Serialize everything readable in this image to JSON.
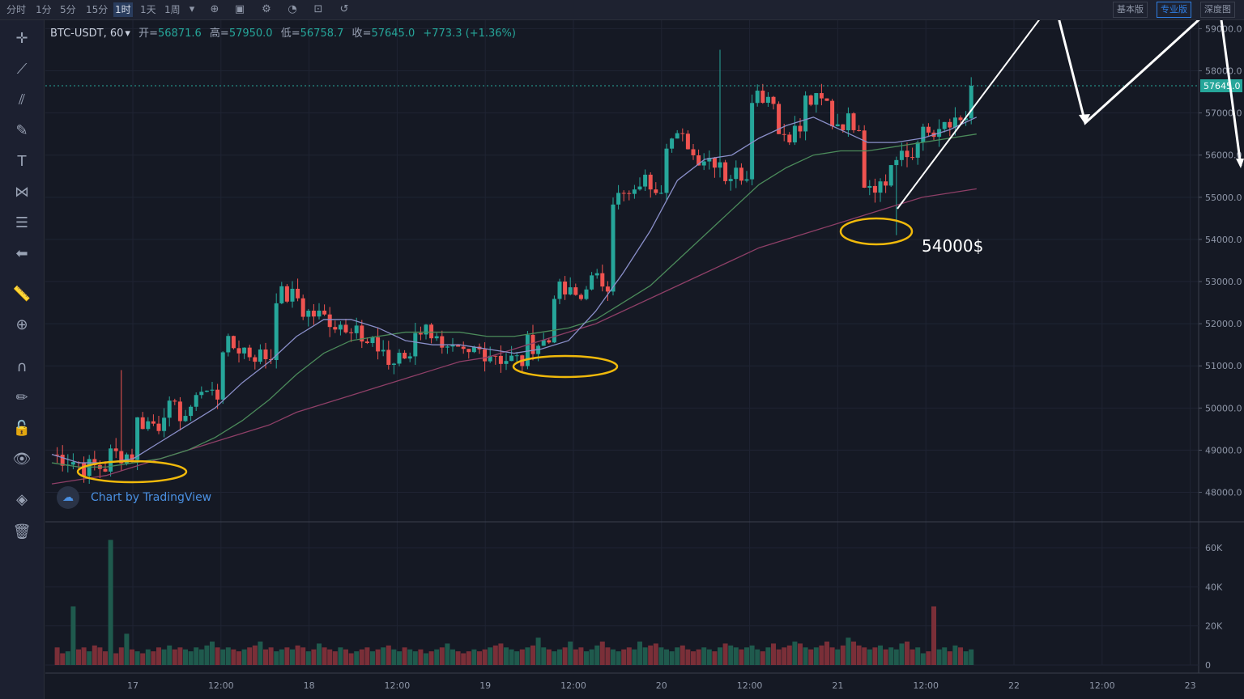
{
  "toolbar": {
    "timeframes": [
      "分时",
      "1分",
      "5分",
      "15分",
      "1时",
      "1天",
      "1周"
    ],
    "active_timeframe": "1时",
    "versions": [
      "基本版",
      "专业版",
      "深度图"
    ],
    "active_version": "专业版"
  },
  "legend": {
    "symbol": "BTC-USDT, 60",
    "open_label": "开",
    "open": "56871.6",
    "high_label": "高",
    "high": "57950.0",
    "low_label": "低",
    "low": "56758.7",
    "close_label": "收",
    "close": "57645.0",
    "change": "+773.3 (+1.36%)"
  },
  "watermark": "Chart by TradingView",
  "colors": {
    "up": "#26a69a",
    "down": "#ef5350",
    "highlight": "#f0b90b",
    "annotation": "#ffffff",
    "ma_fast": "#8a8fc9",
    "ma_mid": "#4b8a5a",
    "ma_slow": "#8e3f67"
  },
  "chart_data": {
    "type": "candlestick",
    "price_axis": {
      "ticks": [
        "48000.0",
        "49000.0",
        "50000.0",
        "51000.0",
        "52000.0",
        "53000.0",
        "54000.0",
        "55000.0",
        "56000.0",
        "57000.0",
        "58000.0",
        "59000.0"
      ],
      "range": [
        47300,
        59200
      ],
      "last_price": "57645.0"
    },
    "volume_axis": {
      "ticks": [
        "0",
        "20K",
        "40K",
        "60K"
      ],
      "range": [
        0,
        72000
      ]
    },
    "time_axis": [
      "17",
      "12:00",
      "18",
      "12:00",
      "19",
      "12:00",
      "20",
      "12:00",
      "21",
      "12:00",
      "22",
      "12:00",
      "23"
    ],
    "annotation_text": "54000$",
    "ohlc_anchors": [
      [
        48800,
        48900
      ],
      [
        48700,
        48600
      ],
      [
        48600,
        48900
      ],
      [
        48900,
        49700
      ],
      [
        49600,
        50000
      ],
      [
        49800,
        50500
      ],
      [
        50300,
        51500
      ],
      [
        51400,
        51300
      ],
      [
        51200,
        52700
      ],
      [
        52600,
        52300
      ],
      [
        52100,
        52000
      ],
      [
        52000,
        51500
      ],
      [
        51400,
        51000
      ],
      [
        51300,
        51900
      ],
      [
        51800,
        51300
      ],
      [
        51200,
        51400
      ],
      [
        51300,
        51200
      ],
      [
        51100,
        51500
      ],
      [
        51600,
        52800
      ],
      [
        52600,
        53000
      ],
      [
        53000,
        55000
      ],
      [
        55000,
        55400
      ],
      [
        55300,
        56400
      ],
      [
        56300,
        56000
      ],
      [
        55900,
        55500
      ],
      [
        55600,
        57500
      ],
      [
        57400,
        56500
      ],
      [
        56600,
        57300
      ],
      [
        57200,
        56800
      ],
      [
        56800,
        55400
      ],
      [
        55300,
        55800
      ],
      [
        56000,
        56500
      ],
      [
        56400,
        56700
      ],
      [
        56600,
        57650
      ]
    ],
    "ma_fast": [
      48900,
      48700,
      48700,
      48800,
      49200,
      49600,
      50000,
      50600,
      51100,
      51700,
      52100,
      52100,
      51900,
      51600,
      51500,
      51500,
      51400,
      51300,
      51400,
      51600,
      52300,
      53200,
      54200,
      55400,
      55900,
      56000,
      56400,
      56700,
      56900,
      56600,
      56300,
      56300,
      56400,
      56600,
      56900
    ],
    "ma_mid": [
      48700,
      48600,
      48600,
      48700,
      48800,
      49000,
      49300,
      49700,
      50200,
      50800,
      51300,
      51600,
      51700,
      51800,
      51800,
      51800,
      51700,
      51700,
      51800,
      51900,
      52100,
      52500,
      52900,
      53500,
      54100,
      54700,
      55300,
      55700,
      56000,
      56100,
      56100,
      56200,
      56300,
      56400,
      56500
    ],
    "ma_slow": [
      48200,
      48300,
      48400,
      48600,
      48800,
      49000,
      49200,
      49400,
      49600,
      49900,
      50100,
      50300,
      50500,
      50700,
      50900,
      51100,
      51200,
      51400,
      51600,
      51800,
      52000,
      52300,
      52600,
      52900,
      53200,
      53500,
      53800,
      54000,
      54200,
      54400,
      54600,
      54800,
      55000,
      55100,
      55200
    ],
    "volume_profile": [
      8,
      9,
      6,
      7,
      30,
      8,
      9,
      7,
      10,
      9,
      7,
      8,
      6,
      9,
      16,
      8,
      7,
      6,
      8,
      7,
      9,
      8,
      10,
      8,
      9,
      8,
      7,
      9,
      8,
      10,
      12,
      9,
      8,
      9,
      8,
      7,
      8,
      9,
      10,
      12,
      8,
      9,
      7,
      8,
      9,
      8,
      10,
      9,
      7,
      8,
      11,
      9,
      8,
      7,
      9,
      8,
      6,
      7,
      8,
      9,
      7,
      8,
      9,
      10,
      8,
      7,
      9,
      8,
      7,
      8,
      6,
      7,
      8,
      9,
      11,
      8,
      7,
      6,
      7,
      8,
      7,
      8,
      9,
      10,
      11,
      9,
      8,
      7,
      8,
      9,
      10,
      14,
      9,
      8,
      7,
      8,
      9,
      12,
      8,
      9,
      7,
      8,
      10,
      12,
      9,
      8,
      7,
      8,
      9,
      8,
      12,
      9,
      10,
      11,
      9,
      8,
      7,
      9,
      10,
      8,
      7,
      8,
      9,
      8,
      7,
      9,
      11,
      10,
      9,
      8,
      9,
      10,
      8,
      7,
      9,
      11,
      8,
      9,
      10,
      12,
      11,
      9,
      8,
      9,
      10,
      12,
      9,
      8,
      10,
      14,
      12,
      10,
      9,
      8,
      9,
      10,
      8,
      9,
      8,
      11,
      12
    ]
  }
}
